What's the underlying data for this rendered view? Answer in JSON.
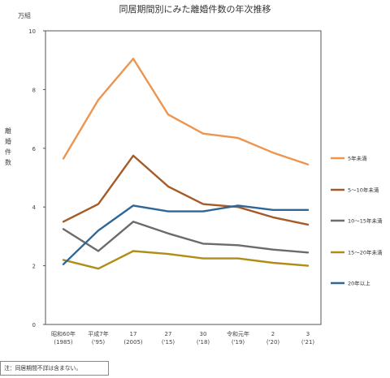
{
  "chart_data": {
    "type": "line",
    "title": "同居期間別にみた離婚件数の年次推移",
    "unit": "万組",
    "ylabel": "離婚件数",
    "ylim": [
      0,
      10
    ],
    "yticks": [
      0,
      2,
      4,
      6,
      8,
      10
    ],
    "grid": false,
    "legend_position": "right",
    "categories": [
      [
        "昭和60年",
        "(1985)"
      ],
      [
        "平成7年",
        "('95)"
      ],
      [
        "17",
        "(2005)"
      ],
      [
        "27",
        "('15)"
      ],
      [
        "30",
        "('18)"
      ],
      [
        "令和元年",
        "('19)"
      ],
      [
        "2",
        "('20)"
      ],
      [
        "3",
        "('21)"
      ]
    ],
    "series": [
      {
        "name": "5年未満",
        "color": "#ed9550",
        "values": [
          5.65,
          7.65,
          9.05,
          7.15,
          6.5,
          6.35,
          5.85,
          5.45
        ]
      },
      {
        "name": "5～10年未満",
        "color": "#a65a25",
        "values": [
          3.5,
          4.1,
          5.75,
          4.7,
          4.1,
          4.0,
          3.65,
          3.4
        ]
      },
      {
        "name": "10～15年未満",
        "color": "#6b6b6b",
        "values": [
          3.25,
          2.5,
          3.5,
          3.1,
          2.75,
          2.7,
          2.55,
          2.45
        ]
      },
      {
        "name": "15～20年未満",
        "color": "#b08d17",
        "values": [
          2.2,
          1.9,
          2.5,
          2.4,
          2.25,
          2.25,
          2.1,
          2.0
        ]
      },
      {
        "name": "20年以上",
        "color": "#2e6796",
        "values": [
          2.05,
          3.2,
          4.05,
          3.85,
          3.85,
          4.05,
          3.9,
          3.9
        ]
      }
    ]
  },
  "note": "注：同居期間不詳は含まない。"
}
